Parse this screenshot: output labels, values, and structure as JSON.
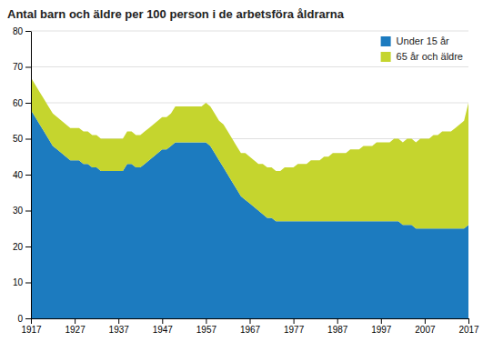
{
  "chart_data": {
    "type": "area",
    "stacked": true,
    "title": "Antal barn och äldre per 100 person i de arbetsföra åldrarna",
    "x": [
      1917,
      1918,
      1919,
      1920,
      1921,
      1922,
      1923,
      1924,
      1925,
      1926,
      1927,
      1928,
      1929,
      1930,
      1931,
      1932,
      1933,
      1934,
      1935,
      1936,
      1937,
      1938,
      1939,
      1940,
      1941,
      1942,
      1943,
      1944,
      1945,
      1946,
      1947,
      1948,
      1949,
      1950,
      1951,
      1952,
      1953,
      1954,
      1955,
      1956,
      1957,
      1958,
      1959,
      1960,
      1961,
      1962,
      1963,
      1964,
      1965,
      1966,
      1967,
      1968,
      1969,
      1970,
      1971,
      1972,
      1973,
      1974,
      1975,
      1976,
      1977,
      1978,
      1979,
      1980,
      1981,
      1982,
      1983,
      1984,
      1985,
      1986,
      1987,
      1988,
      1989,
      1990,
      1991,
      1992,
      1993,
      1994,
      1995,
      1996,
      1997,
      1998,
      1999,
      2000,
      2001,
      2002,
      2003,
      2004,
      2005,
      2006,
      2007,
      2008,
      2009,
      2010,
      2011,
      2012,
      2013,
      2014,
      2015,
      2016,
      2017
    ],
    "series": [
      {
        "name": "Under 15 år",
        "color": "#1c7bbf",
        "values": [
          58,
          56,
          54,
          52,
          50,
          48,
          47,
          46,
          45,
          44,
          44,
          44,
          43,
          43,
          42,
          42,
          41,
          41,
          41,
          41,
          41,
          41,
          43,
          43,
          42,
          42,
          43,
          44,
          45,
          46,
          47,
          47,
          48,
          49,
          49,
          49,
          49,
          49,
          49,
          49,
          49,
          48,
          46,
          44,
          42,
          40,
          38,
          36,
          34,
          33,
          32,
          31,
          30,
          29,
          28,
          28,
          27,
          27,
          27,
          27,
          27,
          27,
          27,
          27,
          27,
          27,
          27,
          27,
          27,
          27,
          27,
          27,
          27,
          27,
          27,
          27,
          27,
          27,
          27,
          27,
          27,
          27,
          27,
          27,
          27,
          26,
          26,
          26,
          25,
          25,
          25,
          25,
          25,
          25,
          25,
          25,
          25,
          25,
          25,
          25,
          26
        ]
      },
      {
        "name": "65 år och äldre",
        "color": "#c5d52e",
        "values": [
          9,
          9,
          9,
          9,
          9,
          9,
          9,
          9,
          9,
          9,
          9,
          9,
          9,
          9,
          9,
          9,
          9,
          9,
          9,
          9,
          9,
          9,
          9,
          9,
          9,
          9,
          9,
          9,
          9,
          9,
          9,
          9,
          9,
          10,
          10,
          10,
          10,
          10,
          10,
          10,
          11,
          11,
          11,
          11,
          12,
          12,
          12,
          12,
          12,
          13,
          13,
          13,
          13,
          14,
          14,
          14,
          14,
          14,
          15,
          15,
          15,
          16,
          16,
          16,
          17,
          17,
          17,
          18,
          18,
          19,
          19,
          19,
          19,
          20,
          20,
          20,
          21,
          21,
          21,
          22,
          22,
          22,
          22,
          23,
          23,
          23,
          24,
          24,
          24,
          25,
          25,
          25,
          26,
          26,
          27,
          27,
          27,
          28,
          29,
          30,
          34
        ]
      }
    ],
    "xlim": [
      1917,
      2017
    ],
    "xticks": [
      1917,
      1927,
      1937,
      1947,
      1957,
      1967,
      1977,
      1987,
      1997,
      2007,
      2017
    ],
    "ylim": [
      0,
      80
    ],
    "yticks": [
      0,
      10,
      20,
      30,
      40,
      50,
      60,
      70,
      80
    ],
    "grid": true,
    "legend": "upper right"
  }
}
